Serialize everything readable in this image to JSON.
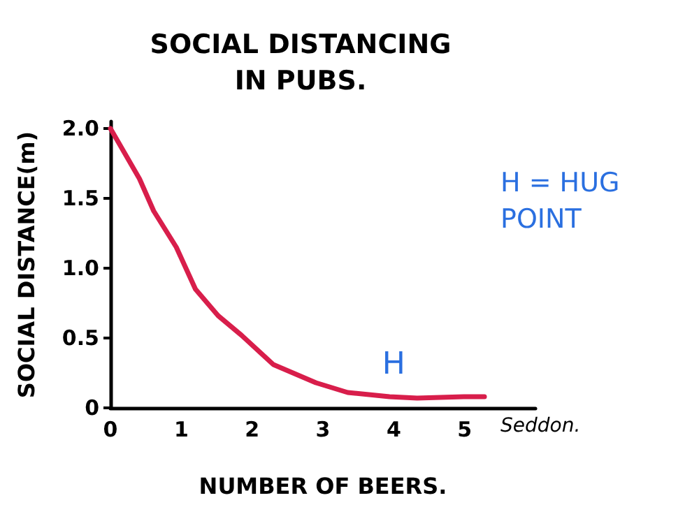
{
  "chart_data": {
    "type": "line",
    "title": "SOCIAL DISTANCING\nIN PUBS.",
    "xlabel": "NUMBER OF BEERS.",
    "ylabel": "SOCIAL DISTANCE(m)",
    "series": [
      {
        "color": "#d81e4b",
        "x": [
          0,
          0.41,
          0.61,
          0.93,
          1.2,
          1.52,
          1.85,
          2.3,
          2.9,
          3.35,
          3.94,
          4.33,
          4.99,
          5.28
        ],
        "values": [
          2.0,
          1.64,
          1.41,
          1.15,
          0.85,
          0.66,
          0.52,
          0.31,
          0.18,
          0.11,
          0.08,
          0.07,
          0.08,
          0.08
        ]
      }
    ],
    "xlim": [
      0,
      6
    ],
    "xticks": [
      0,
      1,
      2,
      3,
      4,
      5
    ],
    "ylim": [
      0,
      2.05
    ],
    "yticks": [
      {
        "value": 0,
        "label": "0"
      },
      {
        "value": 0.5,
        "label": "0.5"
      },
      {
        "value": 1,
        "label": "1.0"
      },
      {
        "value": 1.5,
        "label": "1.5"
      },
      {
        "value": 2,
        "label": "2.0"
      }
    ],
    "annotations": [
      {
        "text": "H",
        "x": 4,
        "y": 0.08
      },
      "H = HUG POINT",
      "Seddon."
    ],
    "grid": false,
    "marker": "none",
    "line_style": "solid"
  }
}
